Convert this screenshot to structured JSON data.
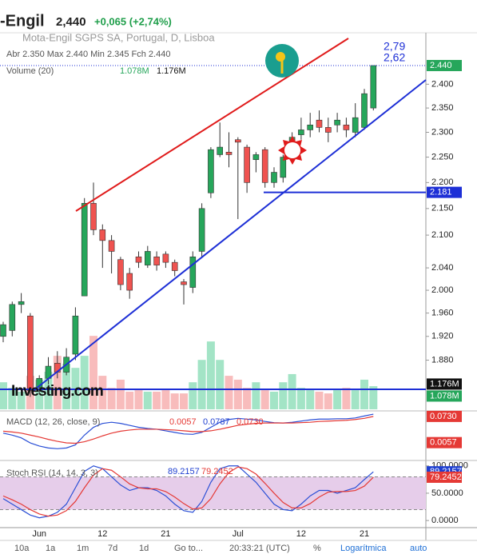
{
  "header": {
    "title": "-Engil",
    "price": "2,440",
    "change": "+0,065 (+2,74%)"
  },
  "toolbar": {
    "ranges": [
      "10a",
      "1a",
      "1m",
      "7d",
      "1d"
    ],
    "goto": "Go to...",
    "time": "20:33:21 (UTC)",
    "percent": "%",
    "log": "Logarítmica",
    "auto": "auto"
  },
  "watermark": "Investing.com",
  "chart_data": [
    {
      "type": "candlestick",
      "title": "Mota-Engil SGPS SA, Portugal, D, Lisboa",
      "ohlc_legend": "Abr 2.350 Max 2.440 Min 2.345 Fch 2.440",
      "categories": [
        null,
        null,
        null,
        null,
        "Jun",
        null,
        null,
        null,
        null,
        null,
        null,
        "12",
        null,
        null,
        null,
        null,
        null,
        null,
        "21",
        null,
        null,
        null,
        null,
        null,
        null,
        null,
        "Jul",
        null,
        null,
        null,
        null,
        null,
        null,
        "12",
        null,
        null,
        null,
        null,
        null,
        null,
        "21",
        null
      ],
      "open": [
        1.92,
        1.93,
        1.975,
        1.955,
        1.835,
        1.85,
        1.875,
        1.86,
        1.89,
        1.99,
        2.16,
        2.11,
        2.09,
        2.055,
        2.03,
        2.06,
        2.045,
        2.06,
        2.065,
        2.05,
        2.015,
        2.005,
        2.07,
        2.18,
        2.255,
        2.26,
        2.285,
        2.27,
        2.245,
        2.265,
        2.2,
        2.21,
        2.255,
        2.295,
        2.305,
        2.325,
        2.31,
        2.315,
        2.315,
        2.3,
        2.31,
        2.35
      ],
      "high": [
        1.945,
        1.98,
        1.995,
        1.96,
        1.855,
        1.885,
        1.895,
        1.9,
        1.97,
        2.17,
        2.2,
        2.12,
        2.1,
        2.06,
        2.04,
        2.07,
        2.08,
        2.07,
        2.07,
        2.055,
        2.02,
        2.07,
        2.16,
        2.27,
        2.32,
        2.3,
        2.29,
        2.275,
        2.26,
        2.27,
        2.23,
        2.255,
        2.3,
        2.33,
        2.34,
        2.345,
        2.33,
        2.34,
        2.33,
        2.36,
        2.39,
        2.44
      ],
      "low": [
        1.91,
        1.92,
        1.96,
        1.82,
        1.825,
        1.84,
        1.85,
        1.855,
        1.88,
        1.99,
        2.1,
        2.04,
        2.03,
        2.0,
        1.985,
        2.04,
        2.04,
        2.035,
        2.04,
        2.025,
        1.975,
        1.995,
        2.06,
        2.17,
        2.25,
        2.23,
        2.13,
        2.18,
        2.22,
        2.19,
        2.19,
        2.2,
        2.25,
        2.285,
        2.29,
        2.3,
        2.28,
        2.3,
        2.29,
        2.29,
        2.305,
        2.345
      ],
      "close": [
        1.94,
        1.975,
        1.98,
        1.83,
        1.85,
        1.87,
        1.86,
        1.885,
        1.955,
        2.16,
        2.11,
        2.09,
        2.07,
        2.01,
        2.0,
        2.05,
        2.07,
        2.045,
        2.05,
        2.035,
        2.01,
        2.06,
        2.15,
        2.265,
        2.27,
        2.255,
        2.28,
        2.2,
        2.255,
        2.2,
        2.22,
        2.25,
        2.29,
        2.305,
        2.315,
        2.31,
        2.3,
        2.325,
        2.305,
        2.33,
        2.38,
        2.44
      ],
      "up_color": "#26a65b",
      "down_color": "#ef5350",
      "log_scale": true,
      "ylim": [
        1.8,
        2.51
      ],
      "yticks": [
        {
          "value": 2.4,
          "label": "2.400"
        },
        {
          "value": 2.35,
          "label": "2.350"
        },
        {
          "value": 2.3,
          "label": "2.300"
        },
        {
          "value": 2.25,
          "label": "2.250"
        },
        {
          "value": 2.2,
          "label": "2.200"
        },
        {
          "value": 2.15,
          "label": "2.150"
        },
        {
          "value": 2.1,
          "label": "2.100"
        },
        {
          "value": 2.04,
          "label": "2.040"
        },
        {
          "value": 2.0,
          "label": "2.000"
        },
        {
          "value": 1.96,
          "label": "1.960"
        },
        {
          "value": 1.92,
          "label": "1.920"
        },
        {
          "value": 1.88,
          "label": "1.880"
        }
      ],
      "price_label": {
        "value": 2.44,
        "label": "2.440"
      },
      "hline": {
        "value": 2.181,
        "label": "2.181"
      },
      "annotations": [
        "2,79",
        "2,62"
      ],
      "volume": {
        "name": "Volume (20)",
        "values": [
          1.26,
          1.0,
          0.82,
          1.56,
          1.38,
          1.75,
          2.49,
          2.12,
          1.93,
          2.49,
          3.42,
          1.56,
          1.0,
          1.38,
          0.82,
          0.89,
          0.82,
          0.82,
          0.89,
          0.74,
          0.74,
          1.26,
          2.3,
          3.16,
          2.3,
          1.56,
          1.38,
          1.0,
          1.26,
          0.89,
          0.82,
          1.26,
          1.64,
          1.0,
          0.89,
          0.82,
          0.74,
          0.89,
          1.0,
          0.89,
          1.38,
          1.078
        ],
        "up_color": "#a3e4c6",
        "down_color": "#f8bcbc",
        "y2lim": [
          0,
          17.5
        ],
        "labels": [
          {
            "value": 1.176,
            "label": "1.176M",
            "color": "#111"
          },
          {
            "value": 1.078,
            "label": "1.078M",
            "color": "#26a65b"
          }
        ]
      }
    },
    {
      "type": "line",
      "title": "MACD (12, 26, close, 9)",
      "legend": [
        {
          "label": "0.0057",
          "color": "#e53935"
        },
        {
          "label": "0.0787",
          "color": "#1e3fd0"
        },
        {
          "label": "0.0730",
          "color": "#e53935"
        }
      ],
      "ylim": [
        -0.036,
        0.083
      ],
      "series": [
        {
          "color": "#2a4fd6",
          "values": [
            0.03,
            0.025,
            0.018,
            0.005,
            -0.003,
            -0.008,
            -0.01,
            -0.008,
            0.0,
            0.025,
            0.045,
            0.055,
            0.058,
            0.055,
            0.05,
            0.045,
            0.042,
            0.04,
            0.036,
            0.032,
            0.028,
            0.027,
            0.032,
            0.045,
            0.058,
            0.065,
            0.068,
            0.066,
            0.064,
            0.06,
            0.057,
            0.056,
            0.058,
            0.061,
            0.064,
            0.066,
            0.066,
            0.067,
            0.067,
            0.069,
            0.074,
            0.0787
          ]
        },
        {
          "color": "#e53935",
          "values": [
            0.035,
            0.033,
            0.03,
            0.025,
            0.02,
            0.014,
            0.009,
            0.005,
            0.004,
            0.008,
            0.015,
            0.023,
            0.03,
            0.035,
            0.038,
            0.04,
            0.04,
            0.04,
            0.039,
            0.038,
            0.036,
            0.034,
            0.034,
            0.036,
            0.04,
            0.045,
            0.05,
            0.053,
            0.055,
            0.056,
            0.056,
            0.056,
            0.056,
            0.057,
            0.058,
            0.06,
            0.061,
            0.062,
            0.063,
            0.065,
            0.068,
            0.073
          ]
        }
      ],
      "axis_labels": [
        {
          "value": 0.073,
          "label": "0.0730",
          "color": "#e53935"
        },
        {
          "value": 0.0057,
          "label": "0.0057",
          "color": "#e53935"
        }
      ]
    },
    {
      "type": "line",
      "title": "Stoch RSI (14, 14, 3, 3)",
      "legend": [
        {
          "label": "89.2157",
          "color": "#1e3fd0"
        },
        {
          "label": "79.2452",
          "color": "#e53935"
        }
      ],
      "ylim": [
        -13,
        107
      ],
      "band": [
        20,
        80
      ],
      "band_color": "#e6cdea",
      "yticks": [
        {
          "value": 100,
          "label": "100.0000"
        },
        {
          "value": 50,
          "label": "50.0000"
        },
        {
          "value": 0,
          "label": "0.0000"
        }
      ],
      "series": [
        {
          "color": "#2a4fd6",
          "values": [
            40,
            30,
            20,
            10,
            5,
            8,
            15,
            30,
            60,
            90,
            100,
            95,
            80,
            65,
            55,
            60,
            60,
            55,
            45,
            30,
            18,
            15,
            35,
            70,
            95,
            100,
            100,
            85,
            70,
            50,
            30,
            20,
            18,
            30,
            45,
            55,
            55,
            50,
            55,
            60,
            75,
            89.2157
          ]
        },
        {
          "color": "#e53935",
          "values": [
            45,
            38,
            30,
            20,
            12,
            8,
            10,
            18,
            35,
            60,
            83,
            95,
            92,
            80,
            67,
            60,
            58,
            58,
            53,
            43,
            31,
            21,
            23,
            40,
            67,
            88,
            98,
            95,
            85,
            68,
            50,
            33,
            23,
            23,
            31,
            43,
            52,
            53,
            53,
            55,
            63,
            79.2452
          ]
        }
      ],
      "axis_labels": [
        {
          "value": 89.2157,
          "label": "89.2157",
          "color": "#1e3fd0"
        },
        {
          "value": 79.2452,
          "label": "79.2452",
          "color": "#e53935"
        }
      ]
    }
  ]
}
